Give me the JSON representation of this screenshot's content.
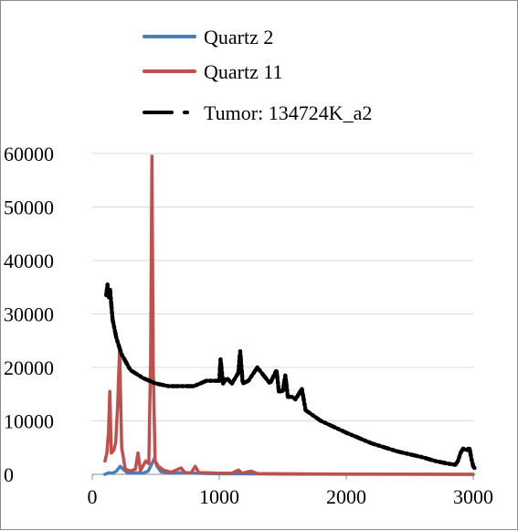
{
  "chart_data": {
    "type": "line",
    "title": "",
    "xlabel": "",
    "ylabel": "",
    "xlim": [
      0,
      3000
    ],
    "ylim": [
      0,
      60000
    ],
    "xticks": [
      0,
      1000,
      2000,
      3000
    ],
    "yticks": [
      0,
      10000,
      20000,
      30000,
      40000,
      50000,
      60000
    ],
    "xtick_labels": [
      "0",
      "1000",
      "2000",
      "3000"
    ],
    "ytick_labels": [
      "0",
      "10000",
      "20000",
      "30000",
      "40000",
      "50000",
      "60000"
    ],
    "grid": "horizontal",
    "legend_position": "top",
    "series": [
      {
        "name": "Quartz 2",
        "color": "#4a7ebb",
        "style": "solid",
        "points": [
          [
            100,
            0
          ],
          [
            130,
            300
          ],
          [
            160,
            200
          ],
          [
            190,
            600
          ],
          [
            220,
            1500
          ],
          [
            250,
            800
          ],
          [
            280,
            200
          ],
          [
            350,
            300
          ],
          [
            400,
            200
          ],
          [
            440,
            600
          ],
          [
            470,
            2000
          ],
          [
            490,
            3000
          ],
          [
            510,
            1500
          ],
          [
            540,
            500
          ],
          [
            600,
            200
          ],
          [
            700,
            300
          ],
          [
            800,
            200
          ],
          [
            1000,
            100
          ],
          [
            1200,
            100
          ],
          [
            1500,
            50
          ],
          [
            2000,
            20
          ],
          [
            2500,
            10
          ],
          [
            3000,
            0
          ]
        ]
      },
      {
        "name": "Quartz 11",
        "color": "#c0504d",
        "style": "solid",
        "points": [
          [
            100,
            2500
          ],
          [
            115,
            4000
          ],
          [
            128,
            8000
          ],
          [
            138,
            15500
          ],
          [
            150,
            4000
          ],
          [
            170,
            4500
          ],
          [
            185,
            6000
          ],
          [
            200,
            13000
          ],
          [
            215,
            23500
          ],
          [
            232,
            5000
          ],
          [
            260,
            1000
          ],
          [
            300,
            600
          ],
          [
            340,
            1000
          ],
          [
            360,
            4000
          ],
          [
            380,
            700
          ],
          [
            420,
            2500
          ],
          [
            445,
            2000
          ],
          [
            460,
            22000
          ],
          [
            470,
            59500
          ],
          [
            480,
            20000
          ],
          [
            495,
            2500
          ],
          [
            520,
            1500
          ],
          [
            560,
            800
          ],
          [
            620,
            400
          ],
          [
            700,
            1200
          ],
          [
            730,
            300
          ],
          [
            780,
            300
          ],
          [
            810,
            1500
          ],
          [
            840,
            300
          ],
          [
            900,
            300
          ],
          [
            1000,
            200
          ],
          [
            1100,
            200
          ],
          [
            1150,
            800
          ],
          [
            1180,
            200
          ],
          [
            1250,
            600
          ],
          [
            1300,
            150
          ],
          [
            1500,
            100
          ],
          [
            2000,
            50
          ],
          [
            2500,
            20
          ],
          [
            3000,
            0
          ]
        ]
      },
      {
        "name": "Tumor: 134724K_a2",
        "color": "#000000",
        "style": "dash-dot",
        "points": [
          [
            110,
            33500
          ],
          [
            120,
            35500
          ],
          [
            130,
            33000
          ],
          [
            140,
            34500
          ],
          [
            160,
            29000
          ],
          [
            190,
            25500
          ],
          [
            230,
            22500
          ],
          [
            300,
            19500
          ],
          [
            400,
            18000
          ],
          [
            500,
            17000
          ],
          [
            600,
            16500
          ],
          [
            700,
            16500
          ],
          [
            800,
            16500
          ],
          [
            850,
            17000
          ],
          [
            900,
            17500
          ],
          [
            950,
            17500
          ],
          [
            1000,
            17500
          ],
          [
            1010,
            21500
          ],
          [
            1030,
            17000
          ],
          [
            1060,
            18000
          ],
          [
            1100,
            17000
          ],
          [
            1150,
            19000
          ],
          [
            1165,
            23000
          ],
          [
            1185,
            17000
          ],
          [
            1230,
            17500
          ],
          [
            1300,
            20000
          ],
          [
            1350,
            18500
          ],
          [
            1400,
            17000
          ],
          [
            1450,
            19500
          ],
          [
            1470,
            15500
          ],
          [
            1500,
            15500
          ],
          [
            1520,
            18500
          ],
          [
            1540,
            14500
          ],
          [
            1580,
            14500
          ],
          [
            1600,
            14000
          ],
          [
            1650,
            16000
          ],
          [
            1680,
            12000
          ],
          [
            1800,
            10000
          ],
          [
            2000,
            7800
          ],
          [
            2200,
            5800
          ],
          [
            2400,
            4300
          ],
          [
            2600,
            3200
          ],
          [
            2700,
            2500
          ],
          [
            2800,
            2000
          ],
          [
            2860,
            1800
          ],
          [
            2880,
            2500
          ],
          [
            2900,
            4000
          ],
          [
            2920,
            4800
          ],
          [
            2950,
            4500
          ],
          [
            2970,
            5000
          ],
          [
            2985,
            3000
          ],
          [
            3000,
            1500
          ],
          [
            3010,
            1200
          ]
        ]
      }
    ]
  }
}
